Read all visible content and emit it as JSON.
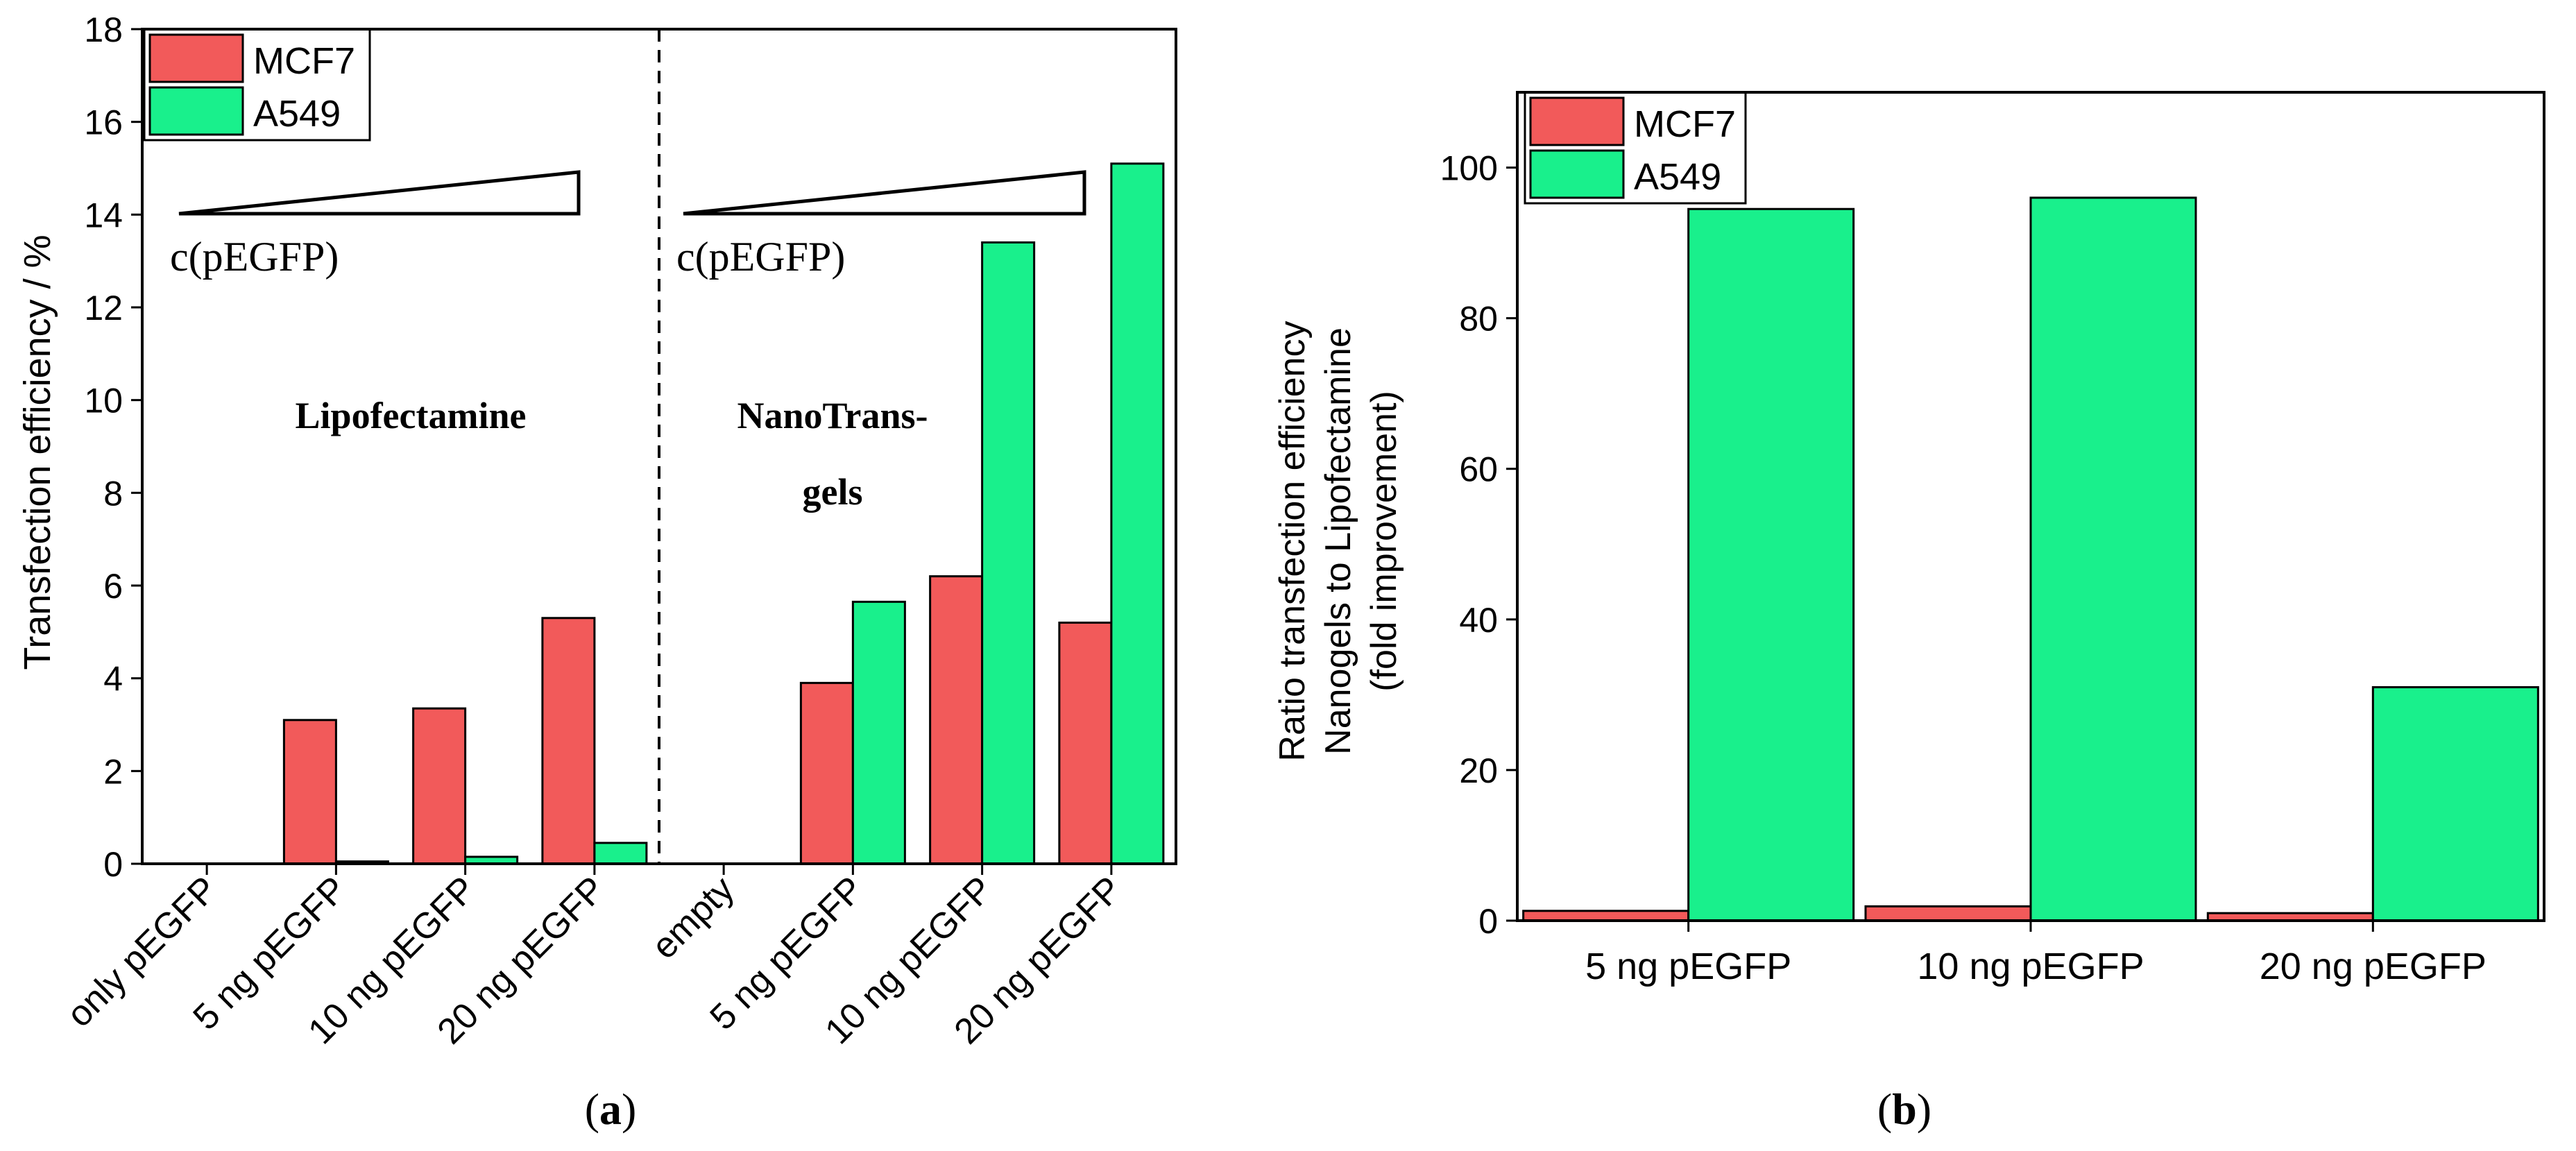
{
  "colors": {
    "mcf7": "#f25a5a",
    "a549": "#19f08c",
    "axis": "#000000"
  },
  "chart_data": [
    {
      "id": "a",
      "type": "bar",
      "panel_label": "a",
      "ylabel": "Transfection efficiency / %",
      "ylim": [
        0,
        18
      ],
      "yticks": [
        "0",
        "2",
        "4",
        "6",
        "8",
        "10",
        "12",
        "14",
        "16",
        "18"
      ],
      "categories": [
        "only pEGFP",
        "5 ng pEGFP",
        "10 ng pEGFP",
        "20 ng pEGFP",
        "empty",
        "5 ng pEGFP",
        "10 ng pEGFP",
        "20 ng pEGFP"
      ],
      "series": [
        {
          "name": "MCF7",
          "values": [
            0,
            3.1,
            3.35,
            5.3,
            0,
            3.9,
            6.2,
            5.2
          ]
        },
        {
          "name": "A549",
          "values": [
            0,
            0.05,
            0.15,
            0.45,
            0,
            5.65,
            13.4,
            15.1
          ]
        }
      ],
      "legend": {
        "position": "top-left",
        "entries": [
          "MCF7",
          "A549"
        ]
      },
      "annotations": {
        "group_left": "Lipofectamine",
        "group_right_line1": "NanoTrans-",
        "group_right_line2": "gels",
        "concentration_label": "c(pEGFP)"
      }
    },
    {
      "id": "b",
      "type": "bar",
      "panel_label": "b",
      "ylabel_lines": [
        "Ratio transfection efficiency",
        "Nanogels to Lipofectamine",
        "(fold improvement)"
      ],
      "ylim": [
        0,
        110
      ],
      "yticks": [
        "0",
        "20",
        "40",
        "60",
        "80",
        "100"
      ],
      "categories": [
        "5 ng pEGFP",
        "10 ng pEGFP",
        "20 ng pEGFP"
      ],
      "series": [
        {
          "name": "MCF7",
          "values": [
            1.3,
            1.9,
            1.0
          ]
        },
        {
          "name": "A549",
          "values": [
            94.5,
            96,
            31
          ]
        }
      ],
      "legend": {
        "position": "top-left",
        "entries": [
          "MCF7",
          "A549"
        ]
      }
    }
  ]
}
